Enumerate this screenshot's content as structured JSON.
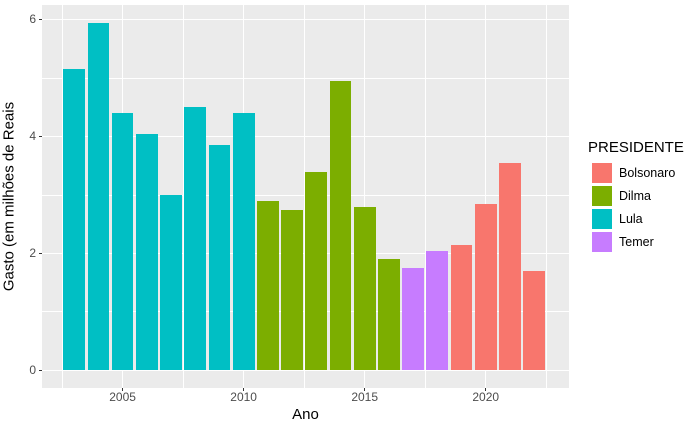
{
  "chart_data": {
    "type": "bar",
    "title": "",
    "xlabel": "Ano",
    "ylabel": "Gasto (em milhões de Reais",
    "legend_title": "PRESIDENTE",
    "legend_position": "right",
    "panel_background": "#EBEBEB",
    "gridline_color": "#FFFFFF",
    "tick_label_color": "#4D4D4D",
    "axis_title_color": "#000000",
    "grid": true,
    "x_ticks": [
      2005,
      2010,
      2015,
      2020
    ],
    "y_ticks": [
      0,
      2,
      4,
      6
    ],
    "x_minor_gridlines": [
      2002.5,
      2007.5,
      2012.5,
      2017.5,
      2022.5
    ],
    "y_minor_gridlines": [
      1,
      3,
      5
    ],
    "xlim": [
      2001.67,
      2023.44
    ],
    "ylim": [
      -0.3,
      6.25
    ],
    "bar_width_years": 0.9,
    "series": [
      {
        "name": "Bolsonaro",
        "color": "#F8766D"
      },
      {
        "name": "Dilma",
        "color": "#7CAE00"
      },
      {
        "name": "Lula",
        "color": "#00BFC4"
      },
      {
        "name": "Temer",
        "color": "#C77CFF"
      }
    ],
    "bars": [
      {
        "year": 2003,
        "value": 5.15,
        "president": "Lula"
      },
      {
        "year": 2004,
        "value": 5.95,
        "president": "Lula"
      },
      {
        "year": 2005,
        "value": 4.4,
        "president": "Lula"
      },
      {
        "year": 2006,
        "value": 4.05,
        "president": "Lula"
      },
      {
        "year": 2007,
        "value": 3.0,
        "president": "Lula"
      },
      {
        "year": 2008,
        "value": 4.5,
        "president": "Lula"
      },
      {
        "year": 2009,
        "value": 3.85,
        "president": "Lula"
      },
      {
        "year": 2010,
        "value": 4.4,
        "president": "Lula"
      },
      {
        "year": 2011,
        "value": 2.9,
        "president": "Dilma"
      },
      {
        "year": 2012,
        "value": 2.75,
        "president": "Dilma"
      },
      {
        "year": 2013,
        "value": 3.4,
        "president": "Dilma"
      },
      {
        "year": 2014,
        "value": 4.95,
        "president": "Dilma"
      },
      {
        "year": 2015,
        "value": 2.8,
        "president": "Dilma"
      },
      {
        "year": 2016,
        "value": 1.9,
        "president": "Dilma"
      },
      {
        "year": 2017,
        "value": 1.75,
        "president": "Temer"
      },
      {
        "year": 2018,
        "value": 2.05,
        "president": "Temer"
      },
      {
        "year": 2019,
        "value": 2.15,
        "president": "Bolsonaro"
      },
      {
        "year": 2020,
        "value": 2.85,
        "president": "Bolsonaro"
      },
      {
        "year": 2021,
        "value": 3.55,
        "president": "Bolsonaro"
      },
      {
        "year": 2022,
        "value": 1.7,
        "president": "Bolsonaro"
      }
    ]
  }
}
